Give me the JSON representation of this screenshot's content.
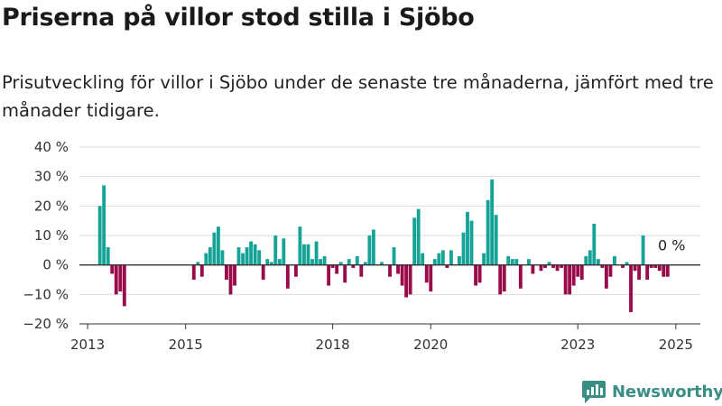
{
  "header": {
    "title": "Priserna på villor stod stilla i Sjöbo",
    "subtitle": "Prisutveckling för villor i Sjöbo under de senaste tre månaderna, jämfört med tre månader tidigare."
  },
  "brand": {
    "name": "Newsworthy",
    "color": "#3a8f84"
  },
  "colors": {
    "positive": "#14a396",
    "negative": "#990a4a",
    "grid": "#dddddd",
    "zero": "#333333"
  },
  "chart_data": {
    "type": "bar",
    "x_range": [
      2012.833,
      2025.5
    ],
    "ylim": [
      -20,
      40
    ],
    "y_ticks": [
      -20,
      -10,
      0,
      10,
      20,
      30,
      40
    ],
    "y_tick_labels": [
      "−20 %",
      "−10 %",
      "0 %",
      "10 %",
      "20 %",
      "30 %",
      "40 %"
    ],
    "x_ticks": [
      2013,
      2015,
      2018,
      2020,
      2023,
      2025
    ],
    "x_tick_labels": [
      "2013",
      "2015",
      "2018",
      "2020",
      "2023",
      "2025"
    ],
    "grid": true,
    "end_label": "0 %",
    "x": [
      2013.25,
      2013.333,
      2013.417,
      2013.5,
      2013.583,
      2013.667,
      2013.75,
      2015.167,
      2015.25,
      2015.333,
      2015.417,
      2015.5,
      2015.583,
      2015.667,
      2015.75,
      2015.833,
      2015.917,
      2016.0,
      2016.083,
      2016.167,
      2016.25,
      2016.333,
      2016.417,
      2016.5,
      2016.583,
      2016.667,
      2016.75,
      2016.833,
      2016.917,
      2017.0,
      2017.083,
      2017.167,
      2017.25,
      2017.333,
      2017.417,
      2017.5,
      2017.583,
      2017.667,
      2017.75,
      2017.833,
      2017.917,
      2018.0,
      2018.083,
      2018.167,
      2018.25,
      2018.333,
      2018.417,
      2018.5,
      2018.583,
      2018.667,
      2018.75,
      2018.833,
      2019.0,
      2019.083,
      2019.167,
      2019.25,
      2019.333,
      2019.417,
      2019.5,
      2019.583,
      2019.667,
      2019.75,
      2019.833,
      2019.917,
      2020.0,
      2020.083,
      2020.167,
      2020.25,
      2020.333,
      2020.417,
      2020.5,
      2020.583,
      2020.667,
      2020.75,
      2020.833,
      2020.917,
      2021.0,
      2021.083,
      2021.167,
      2021.25,
      2021.333,
      2021.417,
      2021.5,
      2021.583,
      2021.667,
      2021.75,
      2021.833,
      2021.917,
      2022.0,
      2022.083,
      2022.25,
      2022.333,
      2022.417,
      2022.5,
      2022.583,
      2022.667,
      2022.75,
      2022.833,
      2022.917,
      2023.0,
      2023.083,
      2023.167,
      2023.25,
      2023.333,
      2023.417,
      2023.5,
      2023.583,
      2023.667,
      2023.75,
      2023.917,
      2024.0,
      2024.083,
      2024.167,
      2024.25,
      2024.333,
      2024.417,
      2024.5,
      2024.583,
      2024.667,
      2024.75,
      2024.833
    ],
    "values": [
      20,
      27,
      6,
      -3,
      -10,
      -9,
      -14,
      -5,
      1,
      -4,
      4,
      6,
      11,
      13,
      5,
      -5,
      -10,
      -7,
      6,
      4,
      6,
      8,
      7,
      5,
      -5,
      2,
      1,
      10,
      2,
      9,
      -8,
      0,
      -4,
      13,
      7,
      7,
      2,
      8,
      2,
      3,
      -7,
      -1,
      -3,
      1,
      -6,
      2,
      -1,
      3,
      -4,
      1,
      10,
      12,
      1,
      0,
      -4,
      6,
      -3,
      -7,
      -11,
      -10,
      16,
      19,
      4,
      -6,
      -9,
      2,
      4,
      5,
      -1,
      5,
      0,
      3,
      11,
      18,
      15,
      -7,
      -6,
      4,
      22,
      29,
      17,
      -10,
      -9,
      3,
      2,
      2,
      -8,
      0,
      2,
      -3,
      -2,
      -1,
      1,
      -1,
      -2,
      -1,
      -10,
      -10,
      -7,
      -4,
      -5,
      3,
      5,
      14,
      2,
      -1,
      -8,
      -4,
      3,
      -1,
      1,
      -16,
      -2,
      -5,
      10,
      -5,
      -1,
      -1,
      -2,
      -4,
      -4
    ]
  }
}
